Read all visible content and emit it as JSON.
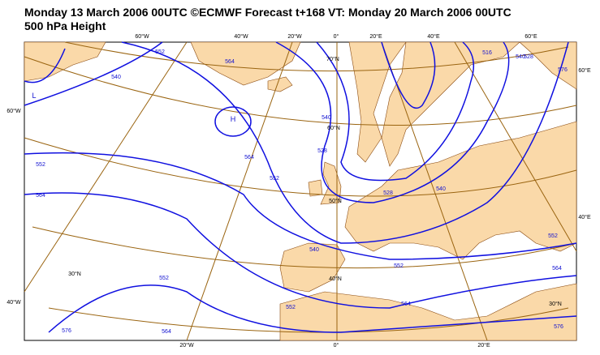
{
  "header": {
    "title": "Monday 13 March 2006 00UTC ©ECMWF Forecast t+168 VT: Monday 20 March 2006 00UTC",
    "subtitle": "500 hPa Height"
  },
  "graticule_labels": [
    "60°W",
    "40°W",
    "20°W",
    "0°",
    "20°E",
    "40°E",
    "60°E",
    "60°E",
    "40°E",
    "60°W",
    "40°W",
    "20°W",
    "0°",
    "20°E",
    "70°N",
    "60°N",
    "50°N",
    "40°N",
    "30°N",
    "30°N"
  ],
  "contour_labels": [
    "552",
    "540",
    "564",
    "576",
    "540",
    "516",
    "528",
    "552",
    "564",
    "564",
    "552",
    "540",
    "528",
    "528",
    "540",
    "552",
    "564",
    "576",
    "540",
    "552",
    "564",
    "552",
    "552",
    "564",
    "576"
  ],
  "centers": [
    "H",
    "L"
  ]
}
